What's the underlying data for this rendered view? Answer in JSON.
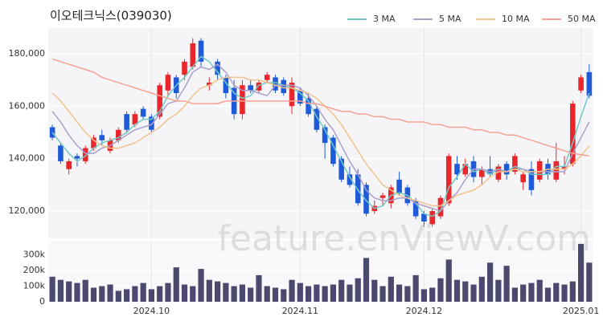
{
  "chart_data": [
    {
      "type": "candlestick",
      "title": "이오테크닉스(039030)",
      "watermark": "feature.enViewV.com",
      "up_color": "#e8262b",
      "down_color": "#1f5bd8",
      "grid": true,
      "legend": "top-right",
      "ylim": [
        109600,
        189800
      ],
      "yticks": [
        {
          "value": 120000,
          "label": "120,000"
        },
        {
          "value": 140000,
          "label": "140,000"
        },
        {
          "value": 160000,
          "label": "160,000"
        },
        {
          "value": 180000,
          "label": "180,000"
        }
      ],
      "open": [
        152000,
        145000,
        136000,
        141000,
        139000,
        144000,
        149000,
        143000,
        147000,
        157000,
        153000,
        159000,
        156000,
        156000,
        166000,
        171000,
        172000,
        175000,
        185000,
        168000,
        177000,
        171000,
        167000,
        157000,
        168000,
        166000,
        170000,
        171000,
        170000,
        160000,
        166000,
        163000,
        159000,
        152000,
        148000,
        140000,
        134000,
        134000,
        130000,
        120000,
        125000,
        123000,
        132000,
        129000,
        124000,
        119000,
        115000,
        118000,
        123000,
        138000,
        134000,
        139000,
        133000,
        136000,
        132000,
        138000,
        135000,
        131000,
        136000,
        132000,
        138000,
        132000,
        136000,
        138000,
        166000,
        173000
      ],
      "high": [
        153000,
        146000,
        140000,
        142000,
        145000,
        149000,
        151000,
        148000,
        152000,
        158000,
        158000,
        160000,
        157000,
        169000,
        173000,
        172000,
        178000,
        186000,
        186000,
        171000,
        178000,
        172000,
        170000,
        170000,
        170000,
        170000,
        173000,
        172000,
        171000,
        171000,
        167000,
        165000,
        160000,
        153000,
        149000,
        141000,
        137000,
        136000,
        131000,
        124000,
        127000,
        130000,
        135000,
        130000,
        125000,
        120000,
        121000,
        126000,
        142000,
        141000,
        140000,
        141000,
        137000,
        141000,
        138000,
        139000,
        142000,
        135000,
        139000,
        140000,
        140000,
        146000,
        141000,
        162000,
        172000,
        176000
      ],
      "low": [
        147000,
        138000,
        134000,
        137000,
        138000,
        143000,
        145000,
        142000,
        146000,
        150000,
        152000,
        155000,
        150000,
        155000,
        164000,
        163000,
        170000,
        174000,
        175000,
        166000,
        170000,
        163000,
        155000,
        155000,
        165000,
        165000,
        169000,
        165000,
        164000,
        157000,
        160000,
        156000,
        150000,
        140000,
        137000,
        131000,
        129000,
        122000,
        118000,
        119000,
        122000,
        121000,
        126000,
        122000,
        117000,
        114000,
        114000,
        117000,
        122000,
        132000,
        133000,
        131000,
        130000,
        133000,
        131000,
        132000,
        134000,
        128000,
        126000,
        131000,
        132000,
        131000,
        134000,
        137000,
        165000,
        163000
      ],
      "close": [
        148000,
        139000,
        139000,
        140000,
        144000,
        148000,
        147000,
        147000,
        151000,
        151000,
        157000,
        156000,
        151000,
        168000,
        172000,
        165000,
        177000,
        184000,
        177000,
        169000,
        172000,
        165000,
        157000,
        168000,
        166000,
        169000,
        172000,
        166000,
        165000,
        169000,
        161000,
        157000,
        151000,
        146000,
        138000,
        132000,
        130000,
        123000,
        119000,
        122000,
        126000,
        129000,
        127000,
        123000,
        118000,
        116000,
        120000,
        125000,
        141000,
        134000,
        138000,
        133000,
        136000,
        134000,
        137000,
        134000,
        141000,
        134000,
        128000,
        139000,
        134000,
        139000,
        137000,
        161000,
        171000,
        164000
      ],
      "series": [
        {
          "name": "3 MA",
          "color": "#72c9c4",
          "values": [
            150000,
            146000,
            142000,
            139000,
            141000,
            144000,
            146000,
            147000,
            148000,
            150000,
            153000,
            155000,
            155000,
            158000,
            164000,
            168000,
            171000,
            175000,
            179000,
            177000,
            173000,
            169000,
            165000,
            163000,
            164000,
            168000,
            169000,
            169000,
            168000,
            167000,
            165000,
            162000,
            156000,
            151000,
            145000,
            139000,
            133000,
            128000,
            124000,
            121000,
            122000,
            126000,
            127000,
            126000,
            123000,
            119000,
            118000,
            120000,
            129000,
            133000,
            138000,
            135000,
            136000,
            134000,
            136000,
            135000,
            137000,
            136000,
            134000,
            134000,
            134000,
            137000,
            137000,
            146000,
            156000,
            165000
          ]
        },
        {
          "name": "5 MA",
          "color": "#ab9fcb",
          "values": [
            158000,
            154000,
            149000,
            145000,
            142000,
            142000,
            144000,
            145000,
            147000,
            149000,
            151000,
            152000,
            153000,
            157000,
            161000,
            162000,
            167000,
            173000,
            175000,
            174000,
            176000,
            173000,
            168000,
            166000,
            166000,
            165000,
            164000,
            168000,
            168000,
            168000,
            167000,
            164000,
            160000,
            155000,
            151000,
            145000,
            139000,
            134000,
            128000,
            125000,
            124000,
            124000,
            125000,
            125000,
            123000,
            122000,
            121000,
            120000,
            124000,
            127000,
            132000,
            136000,
            136000,
            135000,
            136000,
            135000,
            136000,
            136000,
            135000,
            135000,
            135000,
            135000,
            135000,
            142000,
            148000,
            154000
          ]
        },
        {
          "name": "10 MA",
          "color": "#f2c28c",
          "values": [
            165000,
            162000,
            158000,
            154000,
            150000,
            147000,
            145000,
            144000,
            144000,
            145000,
            146000,
            148000,
            150000,
            152000,
            155000,
            157000,
            160000,
            164000,
            167000,
            168000,
            170000,
            171000,
            171000,
            171000,
            170000,
            170000,
            169000,
            168000,
            167000,
            167000,
            166000,
            165000,
            163000,
            160000,
            157000,
            153000,
            148000,
            143000,
            138000,
            134000,
            130000,
            128000,
            126000,
            125000,
            124000,
            123000,
            122000,
            122000,
            124000,
            126000,
            127000,
            128000,
            130000,
            133000,
            135000,
            135000,
            136000,
            135000,
            135000,
            135000,
            136000,
            136000,
            136000,
            138000,
            141000,
            145000
          ]
        },
        {
          "name": "50 MA",
          "color": "#f5a293",
          "values": [
            178000,
            177000,
            176000,
            175000,
            174000,
            173000,
            171000,
            170000,
            169000,
            168000,
            167000,
            166000,
            165000,
            164000,
            163000,
            162000,
            162000,
            161000,
            161000,
            161000,
            161000,
            162000,
            162000,
            162000,
            162000,
            162000,
            162000,
            162000,
            162000,
            162000,
            162000,
            161000,
            161000,
            160000,
            159000,
            158000,
            158000,
            157000,
            157000,
            156000,
            156000,
            155000,
            155000,
            154000,
            154000,
            154000,
            153000,
            153000,
            152000,
            152000,
            152000,
            151000,
            151000,
            150000,
            150000,
            149000,
            149000,
            148000,
            147000,
            146000,
            145000,
            144000,
            143000,
            142000,
            141500,
            141000
          ]
        }
      ]
    },
    {
      "type": "bar",
      "color": "#4b4a6e",
      "grid": true,
      "categories": [
        null,
        null,
        null,
        null,
        null,
        null,
        null,
        null,
        null,
        null,
        null,
        null,
        "2024.10",
        null,
        null,
        null,
        null,
        null,
        null,
        null,
        null,
        null,
        null,
        null,
        null,
        null,
        null,
        null,
        null,
        null,
        "2024.11",
        null,
        null,
        null,
        null,
        null,
        null,
        null,
        null,
        null,
        null,
        null,
        null,
        null,
        null,
        "2024.12",
        null,
        null,
        null,
        null,
        null,
        null,
        null,
        null,
        null,
        null,
        null,
        null,
        null,
        null,
        null,
        null,
        null,
        null,
        "2025.01",
        null
      ],
      "values": [
        160000,
        140000,
        130000,
        120000,
        140000,
        90000,
        100000,
        110000,
        70000,
        80000,
        100000,
        120000,
        80000,
        100000,
        120000,
        220000,
        110000,
        100000,
        210000,
        140000,
        130000,
        120000,
        100000,
        110000,
        90000,
        170000,
        100000,
        90000,
        80000,
        140000,
        120000,
        100000,
        110000,
        100000,
        110000,
        140000,
        110000,
        150000,
        280000,
        140000,
        100000,
        160000,
        110000,
        100000,
        170000,
        80000,
        90000,
        150000,
        270000,
        140000,
        130000,
        110000,
        160000,
        250000,
        140000,
        230000,
        90000,
        110000,
        120000,
        140000,
        90000,
        120000,
        110000,
        130000,
        370000,
        250000
      ],
      "ylim": [
        0,
        390000
      ],
      "yticks": [
        0,
        {
          "value": 100000,
          "label": "100k"
        },
        {
          "value": 200000,
          "label": "200k"
        },
        {
          "value": 300000,
          "label": "300k"
        }
      ]
    }
  ]
}
